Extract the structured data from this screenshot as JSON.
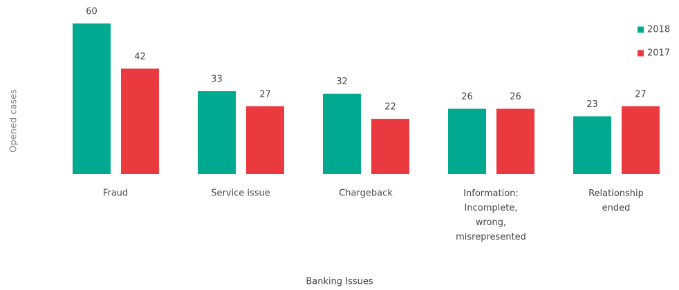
{
  "chart_data": {
    "type": "bar",
    "x_label": "Banking Issues",
    "y_label": "Opened cases",
    "categories": [
      "Fraud",
      "Service issue",
      "Chargeback",
      "Information: Incomplete, wrong, misrepresented",
      "Relationship ended"
    ],
    "series": [
      {
        "name": "2018",
        "color": "#00a98f",
        "values": [
          60,
          33,
          32,
          26,
          23
        ]
      },
      {
        "name": "2017",
        "color": "#ea3a40",
        "values": [
          42,
          27,
          22,
          26,
          27
        ]
      }
    ],
    "ylim": [
      0,
      60
    ],
    "legend": "top-right"
  }
}
